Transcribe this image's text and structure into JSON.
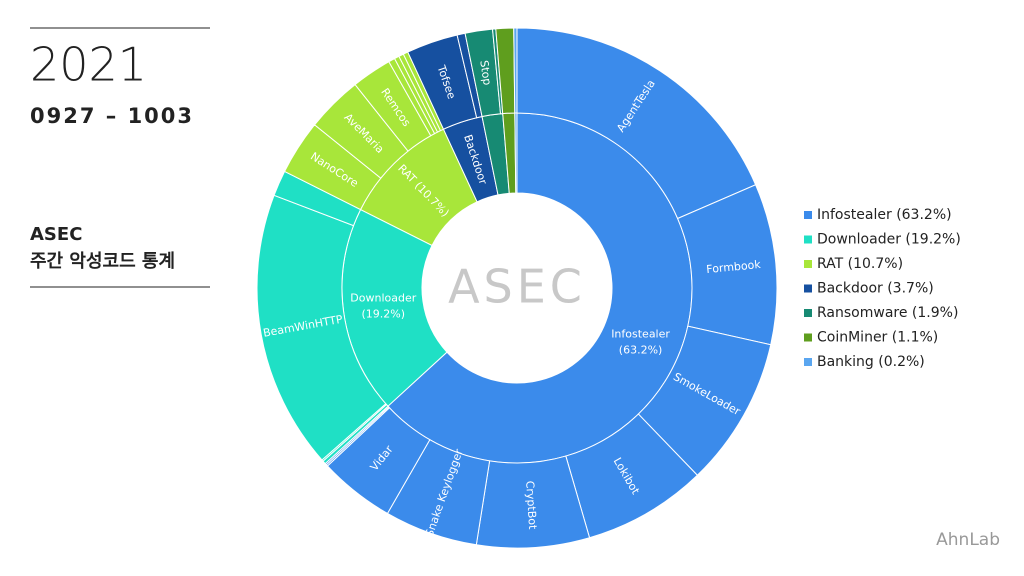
{
  "header": {
    "year": "2021",
    "period": "0927 – 1003",
    "brand": "ASEC",
    "subtitle": "주간 악성코드 통계",
    "center_logo": "ASEC",
    "company": "AhnLab"
  },
  "chart_data": {
    "type": "sunburst",
    "categories": [
      "Infostealer",
      "Downloader",
      "RAT",
      "Backdoor",
      "Ransomware",
      "CoinMiner",
      "Banking"
    ],
    "values": [
      63.2,
      19.2,
      10.7,
      3.7,
      1.9,
      1.1,
      0.2
    ],
    "value_labels": [
      "(63.2%)",
      "(19.2%)",
      "(10.7%)",
      "(3.7%)",
      "(1.9%)",
      "(1.1%)",
      "(0.2%)"
    ],
    "colors": [
      "#3b8beb",
      "#1fe0c5",
      "#a8e63a",
      "#1650a0",
      "#178a73",
      "#5f9e1e",
      "#5aa6f0"
    ],
    "children": [
      {
        "categories": [
          "AgentTesla",
          "Formbook",
          "SmokeLoader",
          "Lokibot",
          "CryptBot",
          "Snake Keylogger",
          "Vidar",
          null,
          null
        ],
        "values": [
          18.5,
          10.0,
          9.3,
          7.7,
          7.0,
          5.8,
          4.7,
          0.1,
          0.1
        ]
      },
      {
        "categories": [
          null,
          null,
          "BeamWinHTTP",
          null
        ],
        "values": [
          0.2,
          0.1,
          17.3,
          1.6
        ]
      },
      {
        "categories": [
          "NanoCore",
          "AveMaria",
          "Remcos",
          null,
          null,
          null,
          null
        ],
        "values": [
          3.4,
          3.5,
          2.5,
          0.4,
          0.3,
          0.3,
          0.3
        ]
      },
      {
        "categories": [
          "Tofsee",
          null
        ],
        "values": [
          3.2,
          0.5
        ]
      },
      {
        "categories": [
          "Stop",
          null
        ],
        "values": [
          1.7,
          0.2
        ]
      },
      {
        "categories": [
          null
        ],
        "values": [
          1.1
        ]
      },
      {
        "categories": [
          null
        ],
        "values": [
          0.2
        ]
      }
    ],
    "legend": "right"
  }
}
